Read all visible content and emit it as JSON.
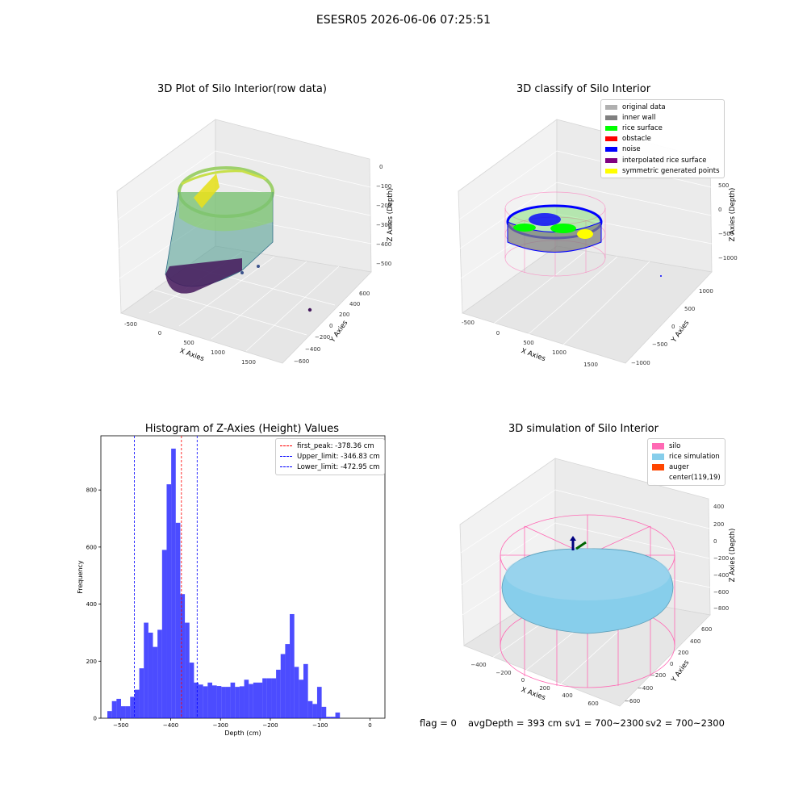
{
  "suptitle": "ESESR05 2026-06-06 07:25:51",
  "panels": {
    "raw": {
      "title": "3D Plot of Silo Interior(row data)",
      "xlabel": "X Axies",
      "ylabel": "Y Axies",
      "zlabel": "Z Axies (Depth)",
      "xticks": [
        "-500",
        "0",
        "500",
        "1000",
        "1500"
      ],
      "yticks": [
        "600",
        "400",
        "200",
        "0",
        "−200",
        "−400",
        "−600"
      ],
      "zticks": [
        "0",
        "−100",
        "−200",
        "−300",
        "−400",
        "−500"
      ]
    },
    "classify": {
      "title": "3D classify of Silo Interior",
      "xlabel": "X Axies",
      "ylabel": "Y Axies",
      "zlabel": "Z Axies (Depth)",
      "xticks": [
        "-500",
        "0",
        "500",
        "1000",
        "1500"
      ],
      "yticks": [
        "1000",
        "500",
        "0",
        "−500",
        "−1000"
      ],
      "zticks": [
        "500",
        "0",
        "−500",
        "−1000"
      ],
      "legend": [
        {
          "label": "original data",
          "color": "#b0b0b0"
        },
        {
          "label": "inner wall",
          "color": "#808080"
        },
        {
          "label": "rice surface",
          "color": "#00ff00"
        },
        {
          "label": "obstacle",
          "color": "#ff0000"
        },
        {
          "label": "noise",
          "color": "#0000ff"
        },
        {
          "label": "interpolated rice surface",
          "color": "#800080"
        },
        {
          "label": "symmetric generated points",
          "color": "#ffff00"
        }
      ]
    },
    "simulation": {
      "title": "3D simulation of Silo Interior",
      "xlabel": "X Axies",
      "ylabel": "Y Axies",
      "zlabel": "Z Axies (Depth)",
      "xticks": [
        "−400",
        "−200",
        "0",
        "200",
        "400",
        "600"
      ],
      "yticks": [
        "600",
        "400",
        "200",
        "0",
        "−200",
        "−400",
        "−600"
      ],
      "zticks": [
        "400",
        "200",
        "0",
        "−200",
        "−400",
        "−600",
        "−800"
      ],
      "legend": [
        {
          "label": "silo",
          "color": "#ff69b4"
        },
        {
          "label": "rice simulation",
          "color": "#87ceeb"
        },
        {
          "label": "auger",
          "color": "#ff4500"
        },
        {
          "label": "center(119,19)",
          "color": "#ffffff"
        }
      ]
    }
  },
  "chart_data": {
    "type": "bar",
    "title": "Histogram of Z-Axies (Height) Values",
    "xlabel": "Depth (cm)",
    "ylabel": "Frequency",
    "xlim": [
      -540,
      30
    ],
    "ylim": [
      0,
      990
    ],
    "xticks": [
      -500,
      -400,
      -300,
      -200,
      -100,
      0
    ],
    "xtick_labels": [
      "−500",
      "−400",
      "−300",
      "−200",
      "−100",
      "0"
    ],
    "yticks": [
      0,
      200,
      400,
      600,
      800
    ],
    "bin_start": -527,
    "bin_width": 9.15,
    "bar_color": "#0000ff",
    "values": [
      25,
      60,
      68,
      42,
      42,
      75,
      100,
      175,
      335,
      300,
      250,
      310,
      590,
      820,
      945,
      685,
      435,
      335,
      195,
      125,
      118,
      112,
      125,
      115,
      113,
      110,
      110,
      125,
      110,
      112,
      135,
      120,
      125,
      125,
      140,
      140,
      140,
      170,
      225,
      260,
      365,
      180,
      135,
      190,
      60,
      50,
      110,
      40,
      5,
      5,
      20
    ],
    "vlines": [
      {
        "label": "first_peak: -378.36 cm",
        "x": -378.36,
        "color": "#ff0000"
      },
      {
        "label": "Upper_limit: -346.83 cm",
        "x": -346.83,
        "color": "#0000ff"
      },
      {
        "label": "Lower_limit: -472.95 cm",
        "x": -472.95,
        "color": "#0000ff"
      }
    ],
    "legend_position": "upper right",
    "grid": false
  },
  "footer": {
    "flag": "flag = 0",
    "avg_depth": "avgDepth = 393 cm",
    "sv1": "sv1 = 700~2300",
    "sv2": "sv2 = 700~2300"
  }
}
